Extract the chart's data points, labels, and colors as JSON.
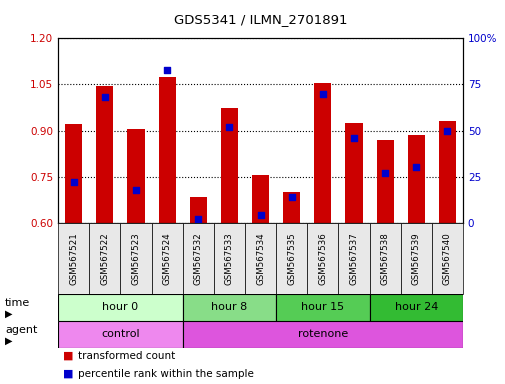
{
  "title": "GDS5341 / ILMN_2701891",
  "samples": [
    "GSM567521",
    "GSM567522",
    "GSM567523",
    "GSM567524",
    "GSM567532",
    "GSM567533",
    "GSM567534",
    "GSM567535",
    "GSM567536",
    "GSM567537",
    "GSM567538",
    "GSM567539",
    "GSM567540"
  ],
  "transformed_count": [
    0.92,
    1.045,
    0.905,
    1.075,
    0.685,
    0.975,
    0.755,
    0.7,
    1.055,
    0.925,
    0.87,
    0.885,
    0.93
  ],
  "percentile_rank": [
    22,
    68,
    18,
    83,
    2,
    52,
    4,
    14,
    70,
    46,
    27,
    30,
    50
  ],
  "ylim_left": [
    0.6,
    1.2
  ],
  "ylim_right": [
    0,
    100
  ],
  "yticks_left": [
    0.6,
    0.75,
    0.9,
    1.05,
    1.2
  ],
  "yticks_right": [
    0,
    25,
    50,
    75,
    100
  ],
  "ytick_labels_right": [
    "0",
    "25",
    "50",
    "75",
    "100%"
  ],
  "bar_color": "#CC0000",
  "dot_color": "#0000CC",
  "bar_bottom": 0.6,
  "time_groups": [
    {
      "label": "hour 0",
      "start": 0,
      "end": 4,
      "color": "#ccffcc"
    },
    {
      "label": "hour 8",
      "start": 4,
      "end": 7,
      "color": "#88dd88"
    },
    {
      "label": "hour 15",
      "start": 7,
      "end": 10,
      "color": "#55cc55"
    },
    {
      "label": "hour 24",
      "start": 10,
      "end": 13,
      "color": "#33bb33"
    }
  ],
  "agent_groups": [
    {
      "label": "control",
      "start": 0,
      "end": 4,
      "color": "#ee88ee"
    },
    {
      "label": "rotenone",
      "start": 4,
      "end": 13,
      "color": "#dd55dd"
    }
  ],
  "legend_bar_label": "transformed count",
  "legend_dot_label": "percentile rank within the sample",
  "time_label": "time",
  "agent_label": "agent",
  "axis_label_color_left": "#CC0000",
  "axis_label_color_right": "#0000CC",
  "fig_width": 5.06,
  "fig_height": 3.84,
  "dpi": 100
}
